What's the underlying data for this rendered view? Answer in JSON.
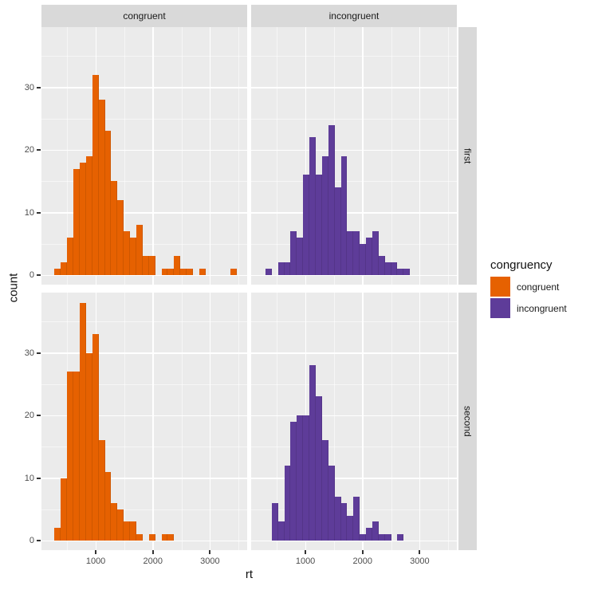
{
  "figure": {
    "background": "#FFFFFF",
    "panel_background": "#EBEBEB",
    "strip_background": "#D9D9D9",
    "grid_color": "#FFFFFF",
    "tick_color": "#333333",
    "tick_label_color": "#4D4D4D",
    "text_color": "#1A1A1A"
  },
  "facets": {
    "col_labels": [
      "congruent",
      "incongruent"
    ],
    "row_labels": [
      "first",
      "second"
    ]
  },
  "legend": {
    "title": "congruency",
    "items": [
      {
        "label": "congruent",
        "color": "#E66101"
      },
      {
        "label": "incongruent",
        "color": "#5E3C99"
      }
    ]
  },
  "chart_data": {
    "type": "bar",
    "subtype": "faceted-histogram",
    "title": "",
    "xlabel": "rt",
    "ylabel": "count",
    "x_domain": [
      50,
      3650
    ],
    "y_domain": [
      -1.5,
      39.6
    ],
    "x_major_ticks": [
      1000,
      2000,
      3000
    ],
    "x_minor_gridlines": [
      500,
      1500,
      2500,
      3500
    ],
    "y_major_ticks": [
      0,
      10,
      20,
      30
    ],
    "y_minor_gridlines": [
      5,
      15,
      25,
      35
    ],
    "grid": "on",
    "legend_position": "right",
    "binwidth": 110,
    "series": [
      {
        "facet_col": "congruent",
        "facet_row": "first",
        "name": "congruent | first",
        "color": "#E66101",
        "x_start": 280,
        "counts": [
          1,
          2,
          6,
          17,
          18,
          19,
          32,
          28,
          23,
          15,
          12,
          7,
          6,
          8,
          3,
          3,
          0,
          1,
          1,
          3,
          1,
          1,
          0,
          1,
          0,
          0,
          0,
          0,
          1
        ]
      },
      {
        "facet_col": "incongruent",
        "facet_row": "first",
        "name": "incongruent | first",
        "color": "#5E3C99",
        "x_start": 300,
        "counts": [
          1,
          0,
          2,
          2,
          7,
          6,
          16,
          22,
          16,
          19,
          24,
          14,
          19,
          7,
          7,
          5,
          6,
          7,
          3,
          2,
          2,
          1,
          1
        ]
      },
      {
        "facet_col": "congruent",
        "facet_row": "second",
        "name": "congruent | second",
        "color": "#E66101",
        "x_start": 280,
        "counts": [
          2,
          10,
          27,
          27,
          38,
          30,
          33,
          16,
          11,
          6,
          5,
          3,
          3,
          1,
          0,
          1,
          0,
          1,
          1
        ]
      },
      {
        "facet_col": "incongruent",
        "facet_row": "second",
        "name": "incongruent | second",
        "color": "#5E3C99",
        "x_start": 410,
        "counts": [
          6,
          3,
          12,
          19,
          20,
          20,
          28,
          23,
          16,
          12,
          7,
          6,
          4,
          7,
          1,
          2,
          3,
          1,
          1,
          0,
          1
        ]
      }
    ]
  }
}
